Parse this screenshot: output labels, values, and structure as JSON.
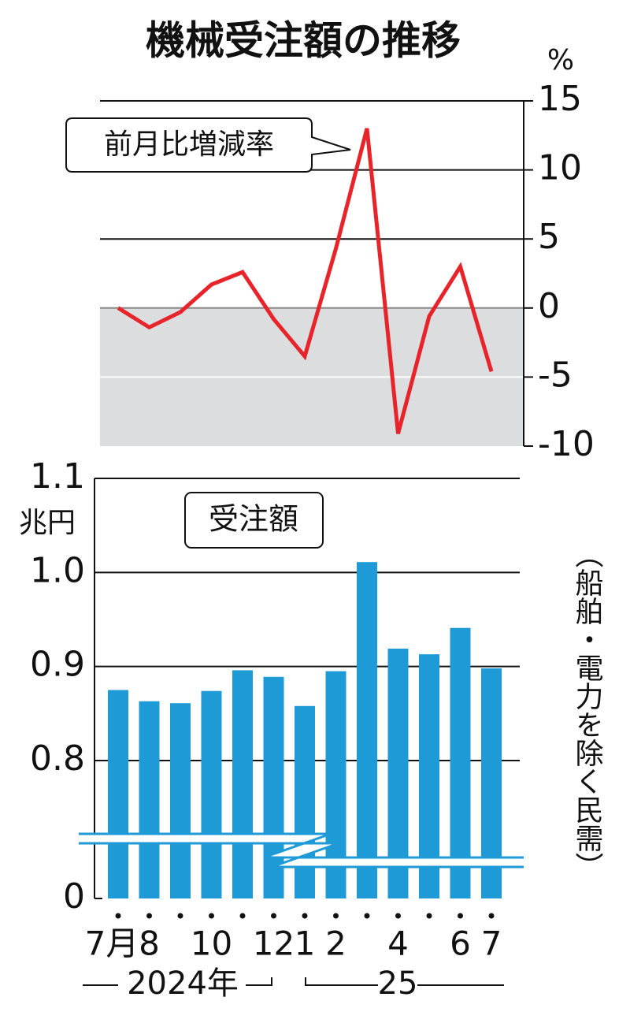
{
  "title": "機械受注額の推移",
  "chart_data": [
    {
      "type": "line",
      "annotation": "前月比増減率",
      "y_unit": "%",
      "categories": [
        "7月",
        "8",
        null,
        "10",
        null,
        "12",
        "1",
        "2",
        null,
        "4",
        null,
        "6",
        "7"
      ],
      "series": [
        {
          "name": "前月比増減率",
          "color": "#e8242b",
          "values": [
            0.0,
            -1.4,
            -0.3,
            1.7,
            2.6,
            -0.8,
            -3.5,
            4.3,
            13.0,
            -9.1,
            -0.6,
            3.0,
            -4.6
          ]
        }
      ],
      "ylim": [
        -10,
        15
      ],
      "yticks": [
        15,
        10,
        5,
        0,
        -5,
        -10
      ],
      "grid": true,
      "negative_shading": true
    },
    {
      "type": "bar",
      "annotation": "受注額",
      "y_unit": "兆円",
      "note": "（船舶・電力を除く民需）",
      "categories": [
        "7月",
        "8",
        null,
        "10",
        null,
        "12",
        "1",
        "2",
        null,
        "4",
        null,
        "6",
        "7"
      ],
      "year_labels": [
        "2024年",
        "25"
      ],
      "values": [
        0.875,
        0.863,
        0.861,
        0.874,
        0.896,
        0.889,
        0.858,
        0.895,
        1.011,
        0.919,
        0.913,
        0.941,
        0.898
      ],
      "color": "#1e9ad6",
      "ylim": [
        0,
        1.1
      ],
      "yticks": [
        0,
        0.8,
        0.9,
        {
          "value": 1,
          "label": "1.0"
        },
        1.1
      ],
      "grid": true,
      "broken_axis": true
    }
  ]
}
